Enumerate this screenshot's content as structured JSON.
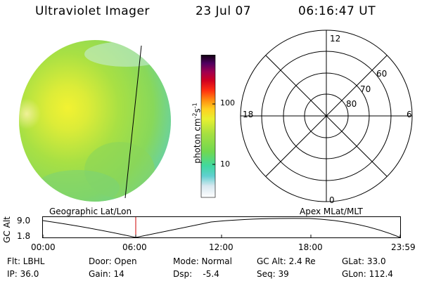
{
  "header": {
    "title": "Ultraviolet Imager",
    "date": "23 Jul 07",
    "time": "06:16:47 UT"
  },
  "colorbar": {
    "unit_label": "photon cm",
    "unit_sup1": "-2",
    "unit_mid": "s",
    "unit_sup2": "-1",
    "tick_100": "100",
    "tick_10": "10"
  },
  "image_panel": {
    "label": "Geographic Lat/Lon"
  },
  "polar_plot": {
    "label": "Apex MLat/MLT",
    "mlt_top": "12",
    "mlt_left": "18",
    "mlt_right": "6",
    "mlt_bottom": "0",
    "lat_60": "60",
    "lat_70": "70",
    "lat_80": "80"
  },
  "orbit_plot": {
    "ylabel": "GC Alt",
    "ytick_top": "9.0",
    "ytick_bottom": "1.8",
    "xticks": [
      "00:00",
      "06:00",
      "12:00",
      "18:00",
      "23:59"
    ]
  },
  "status": {
    "flt": "Flt: LBHL",
    "ip": "IP: 36.0",
    "door": "Door: Open",
    "gain": "Gain: 14",
    "mode": "Mode: Normal",
    "dsp": "Dsp:    -5.4",
    "gc_alt": "GC Alt: 2.4 Re",
    "seq": "Seq: 39",
    "glat": "GLat: 33.0",
    "glon": "GLon: 112.4"
  },
  "colors": {
    "disk_main": "#9de04a",
    "disk_bright": "#e6ef3c",
    "disk_edge": "#6fd8b0",
    "cursor": "#cc0000"
  },
  "icons": {
    "disk": "uv-earth-disk-image",
    "colorbar": "color-scale-bar"
  }
}
